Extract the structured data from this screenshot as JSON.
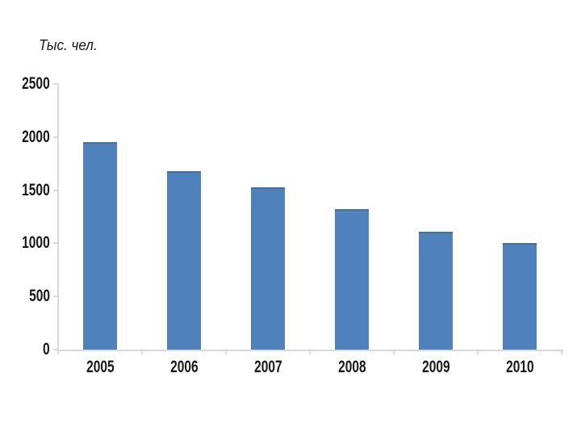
{
  "chart_data": {
    "type": "bar",
    "title": "Тыс. чел.",
    "categories": [
      "2005",
      "2006",
      "2007",
      "2008",
      "2009",
      "2010"
    ],
    "values": [
      1950,
      1680,
      1530,
      1320,
      1110,
      1000
    ],
    "xlabel": "",
    "ylabel": "Тыс. чел.",
    "ylim": [
      0,
      2500
    ],
    "yticks": [
      0,
      500,
      1000,
      1500,
      2000,
      2500
    ],
    "grid": false,
    "legend": "none",
    "colors": {
      "bar": "#4f81bd",
      "bar_top_edge": "#44719c",
      "axis": "#d9d9d9",
      "text": "#1a1a1a",
      "background": "#ffffff"
    }
  }
}
